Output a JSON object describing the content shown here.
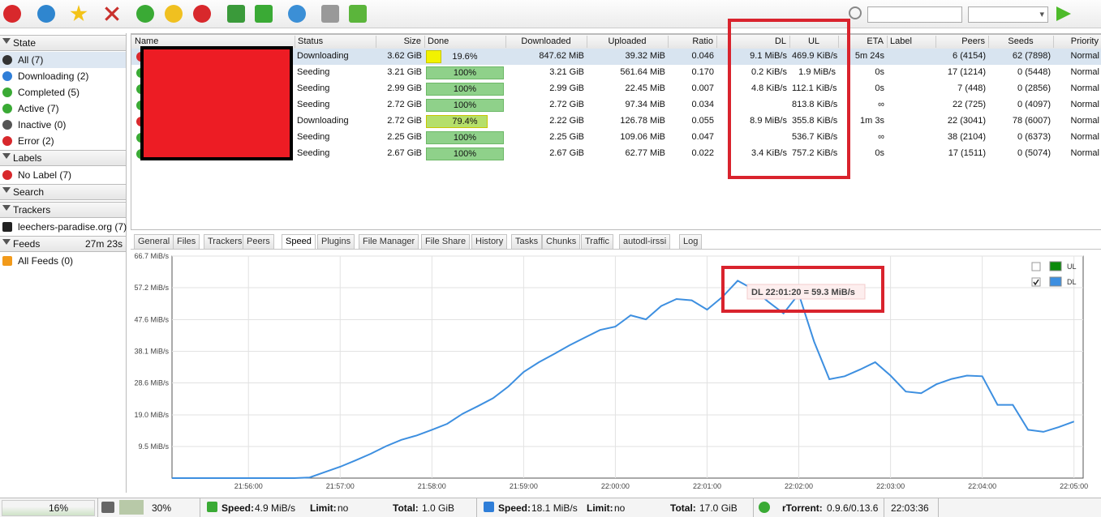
{
  "toolbar": {
    "search_button_hint": "search"
  },
  "sidebar": {
    "sections": [
      {
        "title": "State",
        "items": [
          "All (7)",
          "Downloading (2)",
          "Completed (5)",
          "Active (7)",
          "Inactive (0)",
          "Error (2)"
        ]
      },
      {
        "title": "Labels",
        "items": [
          "No Label (7)"
        ]
      },
      {
        "title": "Search"
      },
      {
        "title": "Trackers",
        "items": [
          "leechers-paradise.org (7)"
        ]
      },
      {
        "title": "Feeds",
        "extra": "27m 23s",
        "items": [
          "All Feeds (0)"
        ]
      }
    ]
  },
  "table": {
    "columns": [
      "Name",
      "Status",
      "Size",
      "Done",
      "Downloaded",
      "Uploaded",
      "Ratio",
      "DL",
      "UL",
      "ETA",
      "Label",
      "Peers",
      "Seeds",
      "Priority"
    ],
    "rows": [
      {
        "status": "Downloading",
        "size": "3.62 GiB",
        "done": "19.6%",
        "downloaded": "847.62 MiB",
        "uploaded": "39.32 MiB",
        "ratio": "0.046",
        "dl": "9.1 MiB/s",
        "ul": "469.9 KiB/s",
        "eta": "5m 24s",
        "peers": "6 (4154)",
        "seeds": "62 (7898)",
        "priority": "Normal"
      },
      {
        "status": "Seeding",
        "size": "3.21 GiB",
        "done": "100%",
        "downloaded": "3.21 GiB",
        "uploaded": "561.64 MiB",
        "ratio": "0.170",
        "dl": "0.2 KiB/s",
        "ul": "1.9 MiB/s",
        "eta": "0s",
        "peers": "17 (1214)",
        "seeds": "0 (5448)",
        "priority": "Normal"
      },
      {
        "status": "Seeding",
        "size": "2.99 GiB",
        "done": "100%",
        "downloaded": "2.99 GiB",
        "uploaded": "22.45 MiB",
        "ratio": "0.007",
        "dl": "4.8 KiB/s",
        "ul": "112.1 KiB/s",
        "eta": "0s",
        "peers": "7 (448)",
        "seeds": "0 (2856)",
        "priority": "Normal"
      },
      {
        "status": "Seeding",
        "size": "2.72 GiB",
        "done": "100%",
        "downloaded": "2.72 GiB",
        "uploaded": "97.34 MiB",
        "ratio": "0.034",
        "ul": "813.8 KiB/s",
        "eta": "∞",
        "peers": "22 (725)",
        "seeds": "0 (4097)",
        "priority": "Normal"
      },
      {
        "status": "Downloading",
        "size": "2.72 GiB",
        "done": "79.4%",
        "downloaded": "2.22 GiB",
        "uploaded": "126.78 MiB",
        "ratio": "0.055",
        "dl": "8.9 MiB/s",
        "ul": "355.8 KiB/s",
        "eta": "1m 3s",
        "peers": "22 (3041)",
        "seeds": "78 (6007)",
        "priority": "Normal"
      },
      {
        "status": "Seeding",
        "size": "2.25 GiB",
        "done": "100%",
        "downloaded": "2.25 GiB",
        "uploaded": "109.06 MiB",
        "ratio": "0.047",
        "ul": "536.7 KiB/s",
        "eta": "∞",
        "peers": "38 (2104)",
        "seeds": "0 (6373)",
        "priority": "Normal"
      },
      {
        "status": "Seeding",
        "size": "2.67 GiB",
        "done": "100%",
        "downloaded": "2.67 GiB",
        "uploaded": "62.77 MiB",
        "ratio": "0.022",
        "dl": "3.4 KiB/s",
        "ul": "757.2 KiB/s",
        "eta": "0s",
        "peers": "17 (1511)",
        "seeds": "0 (5074)",
        "priority": "Normal"
      }
    ]
  },
  "tabs": [
    "General",
    "Files",
    "Trackers",
    "Peers",
    "Speed",
    "Plugins",
    "File Manager",
    "File Share",
    "History",
    "Tasks",
    "Chunks",
    "Traffic",
    "autodl-irssi",
    "Log"
  ],
  "active_tab": "Speed",
  "chart_data": {
    "type": "line",
    "tooltip": "DL 22:01:20 = 59.3 MiB/s",
    "x": [
      "21:55:10",
      "21:55:20",
      "21:55:30",
      "21:55:40",
      "21:55:50",
      "21:56:00",
      "21:56:10",
      "21:56:20",
      "21:56:30",
      "21:56:40",
      "21:56:50",
      "21:57:00",
      "21:57:10",
      "21:57:20",
      "21:57:30",
      "21:57:40",
      "21:57:50",
      "21:58:00",
      "21:58:10",
      "21:58:20",
      "21:58:30",
      "21:58:40",
      "21:58:50",
      "21:59:00",
      "21:59:10",
      "21:59:20",
      "21:59:30",
      "21:59:40",
      "21:59:50",
      "22:00:00",
      "22:00:10",
      "22:00:20",
      "22:00:30",
      "22:00:40",
      "22:00:50",
      "22:01:00",
      "22:01:10",
      "22:01:20",
      "22:01:30",
      "22:01:40",
      "22:01:50",
      "22:02:00",
      "22:02:10",
      "22:02:20",
      "22:02:30",
      "22:02:40",
      "22:02:50",
      "22:03:00",
      "22:03:10",
      "22:03:20",
      "22:03:30",
      "22:03:40",
      "22:03:50",
      "22:04:00",
      "22:04:10",
      "22:04:20",
      "22:04:30",
      "22:04:40",
      "22:04:50",
      "22:05:00"
    ],
    "series": [
      {
        "name": "UL",
        "color": "#0a8a0a",
        "visible": false
      },
      {
        "name": "DL",
        "color": "#3d8fe0",
        "visible": true,
        "values": [
          0,
          0,
          0,
          0,
          0,
          0,
          0,
          0,
          0,
          0.2,
          1.8,
          3.4,
          5.3,
          7.3,
          9.6,
          11.5,
          12.8,
          14.5,
          16.3,
          19.3,
          21.6,
          24,
          27.5,
          31.9,
          34.8,
          37.3,
          39.9,
          42.2,
          44.5,
          45.5,
          48.9,
          47.7,
          51.7,
          53.8,
          53.4,
          50.6,
          54.4,
          59.3,
          56.8,
          53,
          49.5,
          55.3,
          41,
          29.7,
          30.6,
          32.6,
          34.8,
          30.8,
          26,
          25.5,
          28.2,
          29.8,
          30.8,
          30.6,
          22,
          22,
          14.5,
          13.9,
          15.3,
          17
        ]
      }
    ],
    "xlim": [
      "21:55:10",
      "22:05:06"
    ],
    "xticks": [
      "21:56:00",
      "21:57:00",
      "21:58:00",
      "21:59:00",
      "22:00:00",
      "22:01:00",
      "22:02:00",
      "22:03:00",
      "22:04:00",
      "22:05:00"
    ],
    "ylim": [
      0,
      66.7
    ],
    "yticks": [
      {
        "value": 9.5,
        "label": "9.5 MiB/s"
      },
      {
        "value": 19.0,
        "label": "19.0 MiB/s"
      },
      {
        "value": 28.6,
        "label": "28.6 MiB/s"
      },
      {
        "value": 38.1,
        "label": "38.1 MiB/s"
      },
      {
        "value": 47.6,
        "label": "47.6 MiB/s"
      },
      {
        "value": 57.2,
        "label": "57.2 MiB/s"
      },
      {
        "value": 66.7,
        "label": "66.7 MiB/s"
      }
    ],
    "grid": true
  },
  "status_bar": {
    "cpu": "16%",
    "disk": "30%",
    "ul_speed_label": "Speed:",
    "ul_speed": "4.9 MiB/s",
    "ul_limit_label": "Limit:",
    "ul_limit": "no",
    "ul_total_label": "Total:",
    "ul_total": "1.0 GiB",
    "dl_speed_label": "Speed:",
    "dl_speed": "18.1 MiB/s",
    "dl_limit_label": "Limit:",
    "dl_limit": "no",
    "dl_total_label": "Total:",
    "dl_total": "17.0 GiB",
    "client_label": "rTorrent:",
    "client": "0.9.6/0.13.6",
    "time": "22:03:36"
  }
}
